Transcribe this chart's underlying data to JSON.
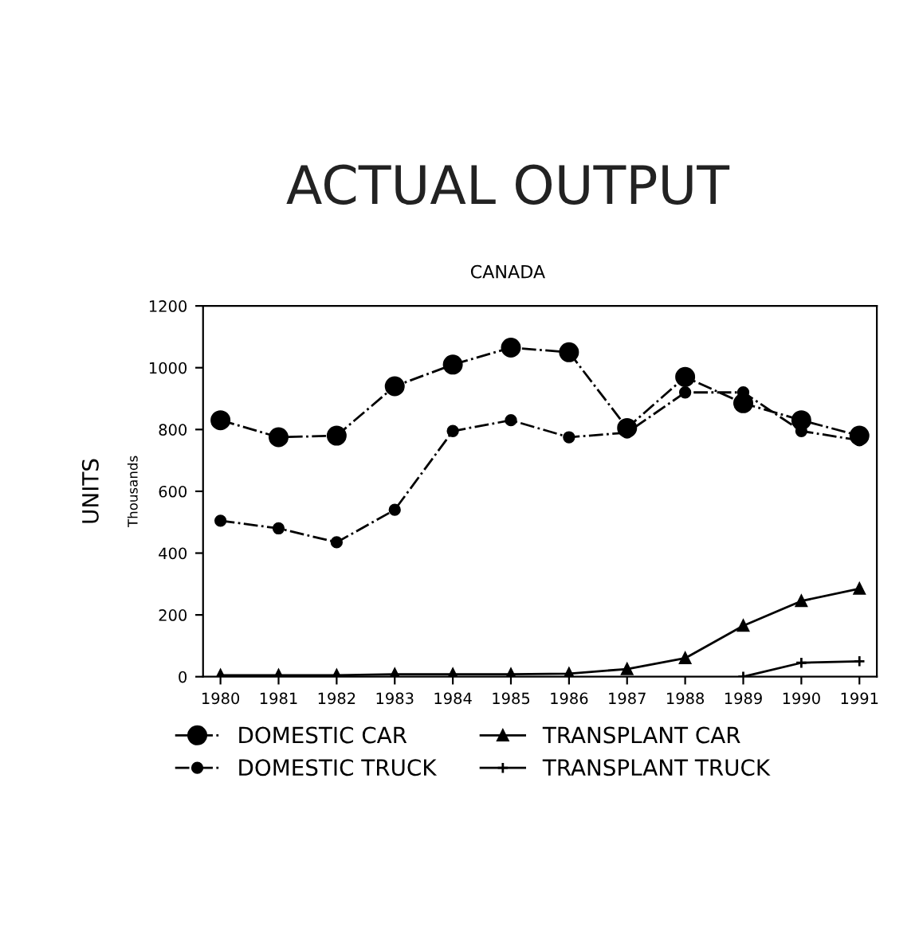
{
  "chart_data": {
    "type": "line",
    "title": "ACTUAL OUTPUT",
    "subtitle": "CANADA",
    "ylabel": "UNITS",
    "annotations": [
      "Thousands"
    ],
    "categories": [
      "1980",
      "1981",
      "1982",
      "1983",
      "1984",
      "1985",
      "1986",
      "1987",
      "1988",
      "1989",
      "1990",
      "1991"
    ],
    "series": [
      {
        "name": "DOMESTIC CAR",
        "color": "#000000",
        "marker": "circle",
        "line_style": "dashed",
        "values": [
          830,
          775,
          780,
          940,
          1010,
          1065,
          1050,
          805,
          970,
          885,
          830,
          780
        ]
      },
      {
        "name": "DOMESTIC TRUCK",
        "color": "#000000",
        "marker": "circle",
        "line_style": "dashed",
        "values": [
          505,
          480,
          435,
          540,
          795,
          830,
          775,
          790,
          920,
          920,
          795,
          765
        ]
      },
      {
        "name": "TRANSPLANT CAR",
        "color": "#000000",
        "marker": "triangle",
        "line_style": "solid",
        "values": [
          5,
          5,
          5,
          8,
          8,
          8,
          10,
          25,
          60,
          165,
          245,
          285
        ]
      },
      {
        "name": "TRANSPLANT TRUCK",
        "color": "#000000",
        "marker": "cross",
        "line_style": "solid",
        "values": [
          null,
          null,
          null,
          null,
          null,
          null,
          null,
          null,
          null,
          0,
          45,
          50
        ]
      }
    ],
    "ylim": [
      0,
      1200
    ],
    "yticks": [
      0,
      200,
      400,
      600,
      800,
      1000,
      1200
    ],
    "legend": "bottom",
    "grid": false
  }
}
